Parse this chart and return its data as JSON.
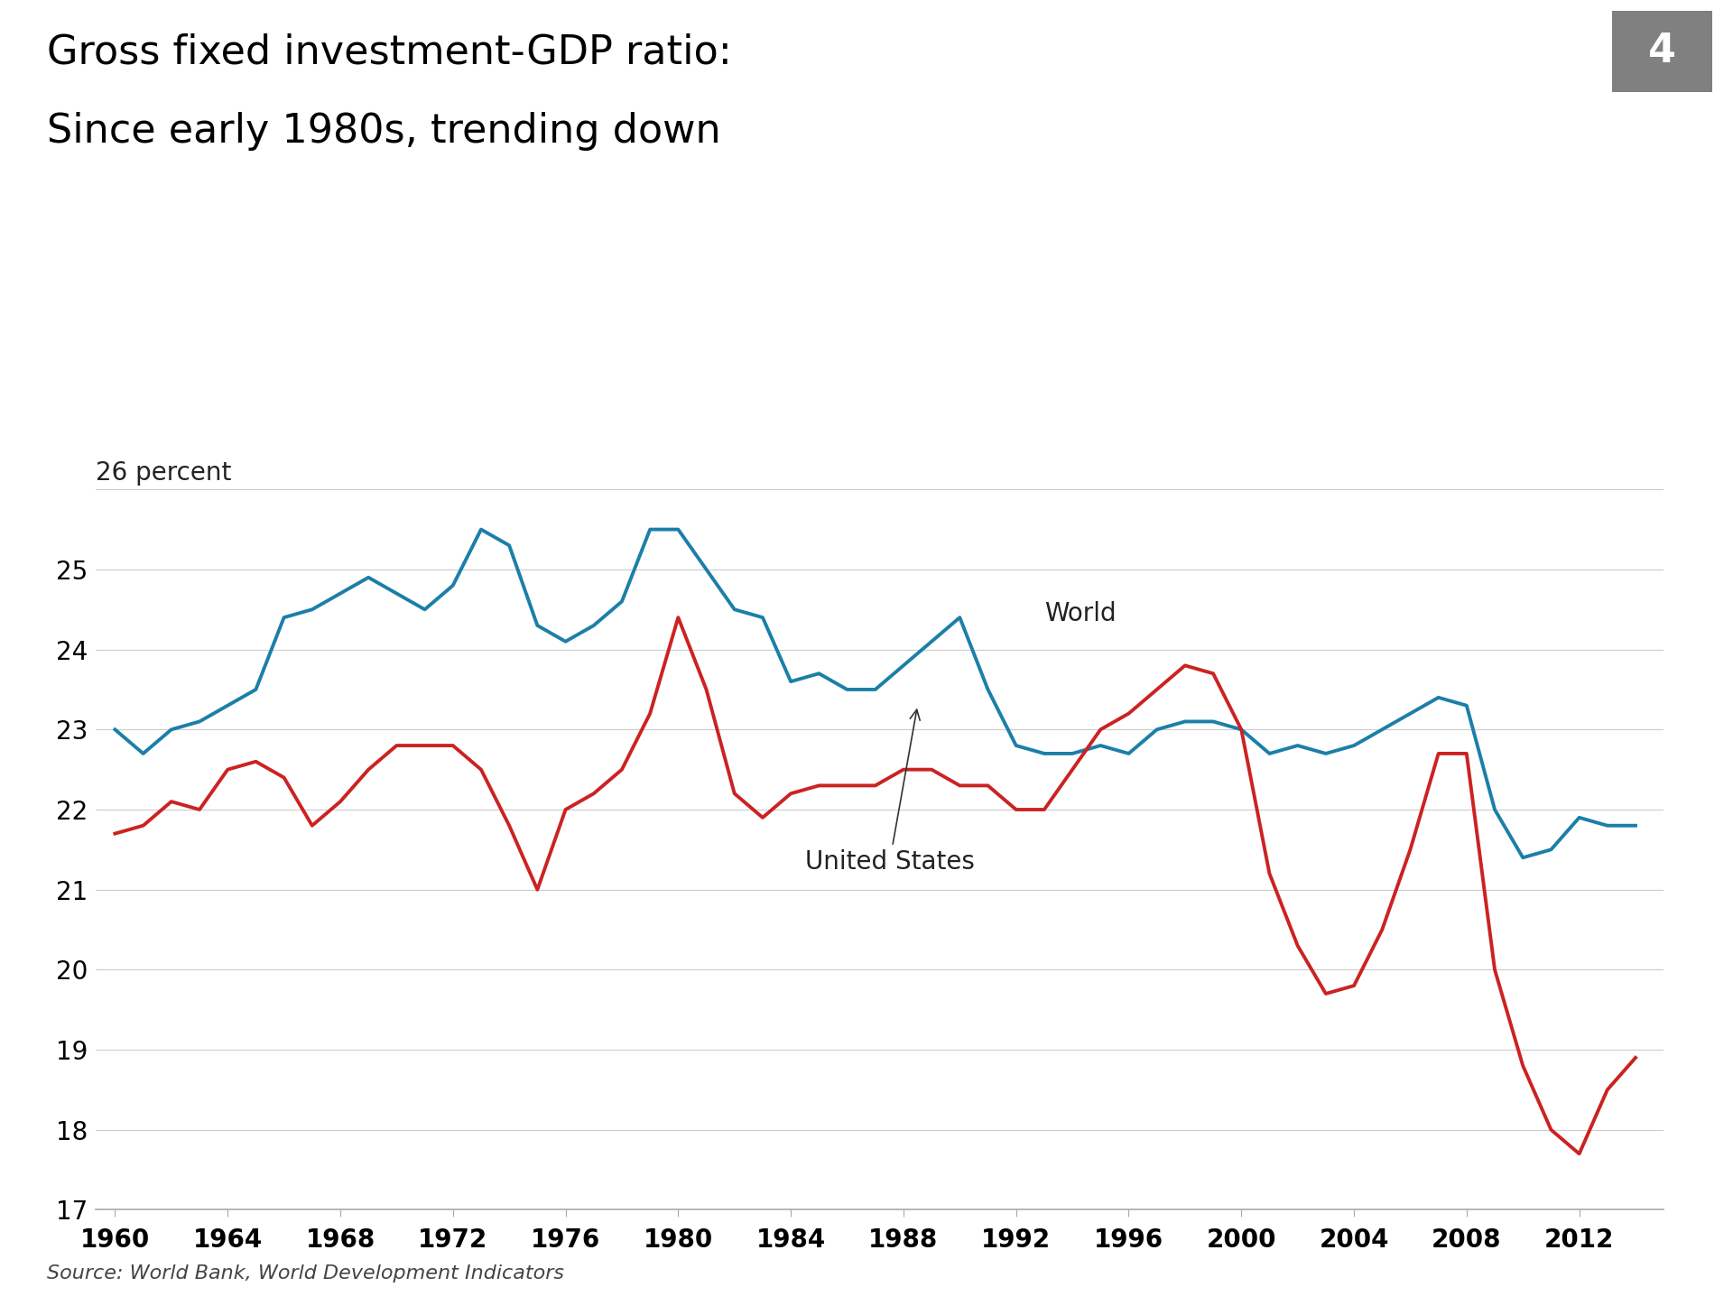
{
  "title_line1": "Gross fixed investment-GDP ratio:",
  "title_line2": "Since early 1980s, trending down",
  "badge_number": "4",
  "ylabel": "26 percent",
  "source": "Source: World Bank, World Development Indicators",
  "world_label": "World",
  "us_label": "United States",
  "world_color": "#1B7FA8",
  "us_color": "#CC2222",
  "background_color": "#FFFFFF",
  "years": [
    1960,
    1961,
    1962,
    1963,
    1964,
    1965,
    1966,
    1967,
    1968,
    1969,
    1970,
    1971,
    1972,
    1973,
    1974,
    1975,
    1976,
    1977,
    1978,
    1979,
    1980,
    1981,
    1982,
    1983,
    1984,
    1985,
    1986,
    1987,
    1988,
    1989,
    1990,
    1991,
    1992,
    1993,
    1994,
    1995,
    1996,
    1997,
    1998,
    1999,
    2000,
    2001,
    2002,
    2003,
    2004,
    2005,
    2006,
    2007,
    2008,
    2009,
    2010,
    2011,
    2012,
    2013,
    2014
  ],
  "world_data": [
    23.0,
    22.7,
    23.0,
    23.1,
    23.3,
    23.5,
    24.4,
    24.5,
    24.7,
    24.9,
    24.7,
    24.5,
    24.8,
    25.5,
    25.3,
    24.3,
    24.1,
    24.3,
    24.6,
    25.5,
    25.5,
    25.0,
    24.5,
    24.4,
    23.6,
    23.7,
    23.5,
    23.5,
    23.8,
    24.1,
    24.4,
    23.5,
    22.8,
    22.7,
    22.7,
    22.8,
    22.7,
    23.0,
    23.1,
    23.1,
    23.0,
    22.7,
    22.8,
    22.7,
    22.8,
    23.0,
    23.2,
    23.4,
    23.3,
    22.0,
    21.4,
    21.5,
    21.9,
    21.8,
    21.8
  ],
  "us_data": [
    21.7,
    21.8,
    22.1,
    22.0,
    22.5,
    22.6,
    22.4,
    21.8,
    22.1,
    22.5,
    22.8,
    22.8,
    22.8,
    22.5,
    21.8,
    21.0,
    22.0,
    22.2,
    22.5,
    23.2,
    24.4,
    23.5,
    22.2,
    21.9,
    22.2,
    22.3,
    22.3,
    22.3,
    22.5,
    22.5,
    22.3,
    22.3,
    22.0,
    22.0,
    22.5,
    23.0,
    23.2,
    23.5,
    23.8,
    23.7,
    23.0,
    21.2,
    20.3,
    19.7,
    19.8,
    20.5,
    21.5,
    22.7,
    22.7,
    20.0,
    18.8,
    18.0,
    17.7,
    18.5,
    18.9
  ],
  "ylim": [
    17,
    26.2
  ],
  "yticks": [
    17,
    18,
    19,
    20,
    21,
    22,
    23,
    24,
    25
  ],
  "xtick_years": [
    1960,
    1964,
    1968,
    1972,
    1976,
    1980,
    1984,
    1988,
    1992,
    1996,
    2000,
    2004,
    2008,
    2012
  ],
  "line_width": 2.8,
  "title_fontsize": 32,
  "tick_fontsize": 20,
  "label_fontsize": 20,
  "source_fontsize": 16,
  "badge_color": "#808080",
  "badge_fontsize": 32,
  "grid_color": "#CCCCCC",
  "spine_color": "#AAAAAA"
}
